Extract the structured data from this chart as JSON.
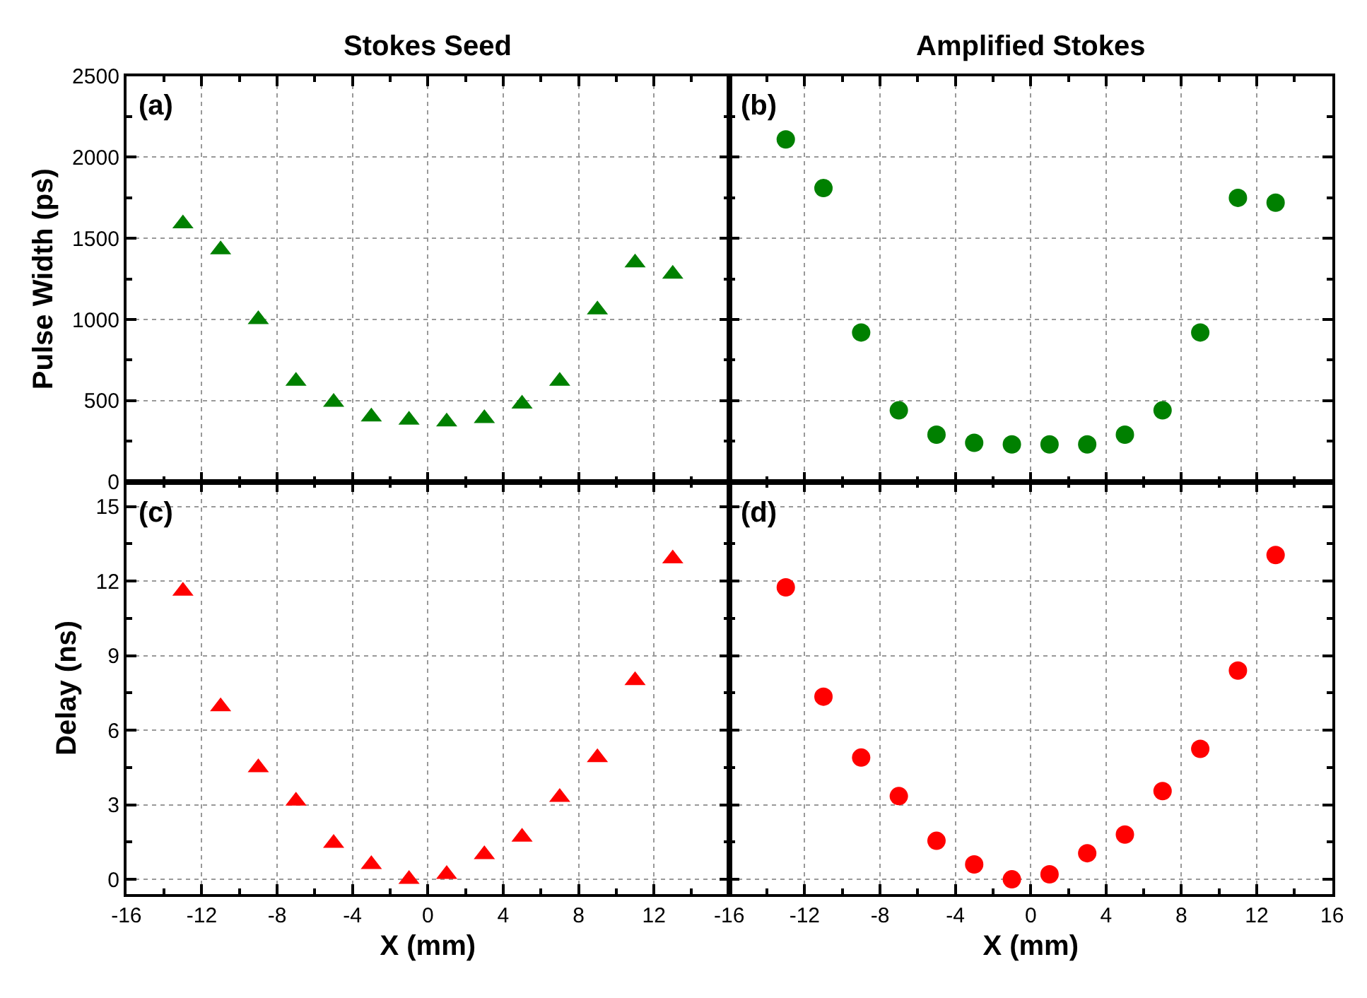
{
  "chart_data": [
    {
      "type": "scatter",
      "title": "Stokes Seed",
      "ylabel": "Pulse Width (ps)",
      "annotations": [
        "(a)"
      ],
      "marker": "triangle",
      "grid": true,
      "tick_labels": "y",
      "x": [
        -13,
        -11,
        -9,
        -7,
        -5,
        -3,
        -1,
        1,
        3,
        5,
        7,
        9,
        11,
        13
      ],
      "series": [
        {
          "color": "#008000",
          "values": [
            1590,
            1430,
            1000,
            620,
            490,
            400,
            380,
            370,
            390,
            480,
            620,
            1060,
            1350,
            1280
          ]
        }
      ],
      "xlim": [
        -16,
        16
      ],
      "xticks": [
        -16,
        -12,
        -8,
        -4,
        0,
        4,
        8,
        12,
        {
          "value": 16,
          "label": null
        }
      ],
      "ylim": [
        0,
        2500
      ],
      "yticks": [
        0,
        500,
        1000,
        1500,
        2000,
        2500
      ]
    },
    {
      "type": "scatter",
      "title": "Amplified Stokes",
      "annotations": [
        "(b)"
      ],
      "marker": "circle",
      "grid": true,
      "tick_labels": false,
      "x": [
        -13,
        -11,
        -9,
        -7,
        -5,
        -3,
        -1,
        1,
        3,
        5,
        7,
        9,
        11,
        13
      ],
      "series": [
        {
          "color": "#008000",
          "values": [
            2110,
            1810,
            920,
            440,
            290,
            240,
            230,
            230,
            230,
            290,
            440,
            920,
            1750,
            1720
          ]
        }
      ],
      "xlim": [
        -16,
        16
      ],
      "xticks": [
        -16,
        -12,
        -8,
        -4,
        0,
        4,
        8,
        12,
        16
      ],
      "ylim": [
        0,
        2500
      ],
      "yticks": [
        0,
        500,
        1000,
        1500,
        2000,
        2500
      ]
    },
    {
      "type": "scatter",
      "xlabel": "X (mm)",
      "ylabel": "Delay (ns)",
      "annotations": [
        "(c)"
      ],
      "marker": "triangle",
      "grid": true,
      "x": [
        -13,
        -11,
        -9,
        -7,
        -5,
        -3,
        -1,
        1,
        3,
        5,
        7,
        9,
        11,
        13
      ],
      "series": [
        {
          "color": "#ff0000",
          "values": [
            11.6,
            6.95,
            4.5,
            3.15,
            1.45,
            0.6,
            0,
            0.2,
            1.0,
            1.7,
            3.3,
            4.9,
            8.0,
            12.9
          ]
        }
      ],
      "xlim": [
        -16,
        16
      ],
      "xticks": [
        -16,
        -12,
        -8,
        -4,
        0,
        4,
        8,
        12,
        {
          "value": 16,
          "label": null
        }
      ],
      "ylim": [
        -0.6,
        16
      ],
      "yticks": [
        0,
        3,
        6,
        9,
        12,
        15
      ]
    },
    {
      "type": "scatter",
      "xlabel": "X (mm)",
      "annotations": [
        "(d)"
      ],
      "marker": "circle",
      "grid": true,
      "tick_labels": "x",
      "x": [
        -13,
        -11,
        -9,
        -7,
        -5,
        -3,
        -1,
        1,
        3,
        5,
        7,
        9,
        11,
        13
      ],
      "series": [
        {
          "color": "#ff0000",
          "values": [
            11.75,
            7.35,
            4.9,
            3.35,
            1.55,
            0.6,
            0,
            0.2,
            1.05,
            1.8,
            3.55,
            5.25,
            8.4,
            13.05
          ]
        }
      ],
      "xlim": [
        -16,
        16
      ],
      "xticks": [
        -16,
        -12,
        -8,
        -4,
        0,
        4,
        8,
        12,
        16
      ],
      "ylim": [
        -0.6,
        16
      ],
      "yticks": [
        0,
        3,
        6,
        9,
        12,
        15
      ]
    }
  ]
}
